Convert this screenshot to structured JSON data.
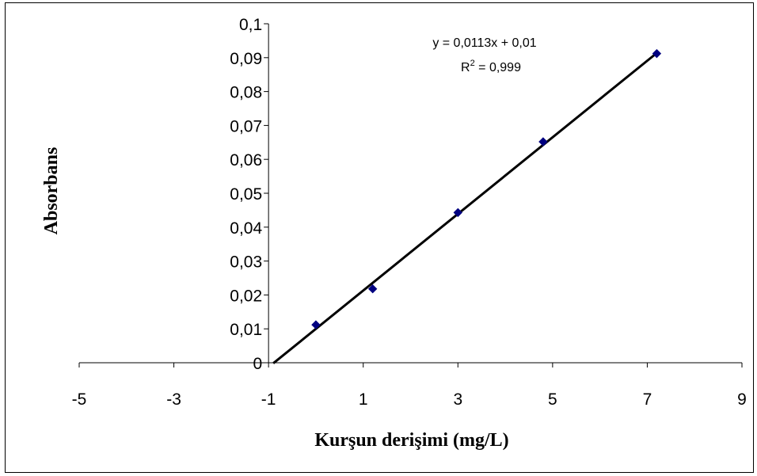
{
  "chart_data": {
    "type": "scatter",
    "xlabel": "Kurşun derişimi (mg/L)",
    "ylabel": "Absorbans",
    "xlim": [
      -5,
      9
    ],
    "ylim": [
      0,
      0.1
    ],
    "x_ticks": [
      "-5",
      "-3",
      "-1",
      "1",
      "3",
      "5",
      "7",
      "9"
    ],
    "y_ticks": [
      "0",
      "0,01",
      "0,02",
      "0,03",
      "0,04",
      "0,05",
      "0,06",
      "0,07",
      "0,08",
      "0,09",
      "0,1"
    ],
    "grid": false,
    "series": [
      {
        "x": [
          0,
          1.2,
          3.0,
          4.8,
          7.2
        ],
        "y": [
          0.0112,
          0.0218,
          0.0443,
          0.0652,
          0.0912
        ],
        "marker": "diamond",
        "color": "#000080"
      }
    ],
    "trendline": {
      "slope": 0.0113,
      "intercept": 0.01,
      "x_range": [
        -0.9,
        7.2
      ],
      "color": "#000000"
    },
    "annotations": {
      "equation": "y = 0,0113x + 0,01",
      "r2_prefix": "R",
      "r2_sup": "2",
      "r2_value": " = 0,999"
    }
  }
}
